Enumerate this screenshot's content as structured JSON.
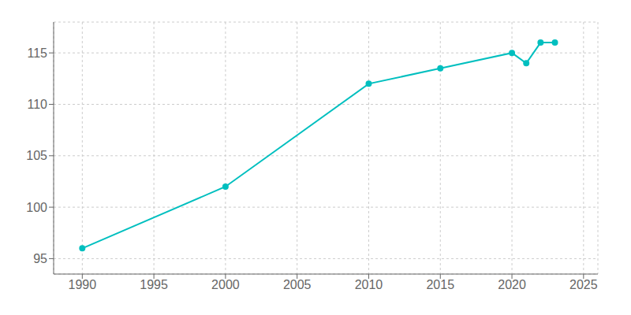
{
  "chart_data": {
    "type": "line",
    "x": [
      1990,
      2000,
      2010,
      2015,
      2020,
      2021,
      2022,
      2023
    ],
    "values": [
      96,
      102,
      112,
      113.5,
      115,
      114,
      116,
      116
    ],
    "color": "#00BFBF",
    "marker": "circle",
    "xlim": [
      1988,
      2026
    ],
    "ylim": [
      93.5,
      118
    ],
    "xticks": [
      1990,
      1995,
      2000,
      2005,
      2010,
      2015,
      2020,
      2025
    ],
    "yticks": [
      95,
      100,
      105,
      110,
      115
    ],
    "grid": true
  }
}
